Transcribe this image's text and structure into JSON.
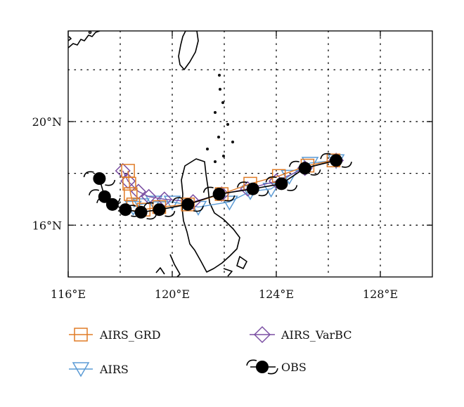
{
  "map": {
    "x_axis": {
      "range": [
        116,
        130
      ],
      "ticks": [
        {
          "value": 116,
          "label": "116°E"
        },
        {
          "value": 120,
          "label": "120°E"
        },
        {
          "value": 124,
          "label": "124°E"
        },
        {
          "value": 128,
          "label": "128°E"
        }
      ],
      "gridlines": [
        118,
        122,
        126
      ]
    },
    "y_axis": {
      "range": [
        14.0,
        23.5
      ],
      "ticks": [
        {
          "value": 20,
          "label": "20°N"
        },
        {
          "value": 16,
          "label": "16°N"
        }
      ],
      "gridlines": [
        22,
        18
      ]
    },
    "grid": "dotted"
  },
  "colors": {
    "AIRS_GRD": "#e07b26",
    "AIRS": "#5b9bd5",
    "AIRS_VarBC": "#7b4fa3",
    "OBS": "#000000"
  },
  "chart_data": {
    "type": "scatter",
    "xlabel": "",
    "ylabel": "",
    "series": [
      {
        "name": "AIRS_GRD",
        "marker": "square",
        "points": [
          [
            126.2,
            18.5
          ],
          [
            125.2,
            18.3
          ],
          [
            124.1,
            17.9
          ],
          [
            123.0,
            17.6
          ],
          [
            121.9,
            17.2
          ],
          [
            120.6,
            16.8
          ],
          [
            119.5,
            16.7
          ],
          [
            118.9,
            16.6
          ],
          [
            118.5,
            16.8
          ],
          [
            118.4,
            17.2
          ],
          [
            118.35,
            17.6
          ],
          [
            118.3,
            18.1
          ]
        ]
      },
      {
        "name": "AIRS",
        "marker": "triangle-down",
        "points": [
          [
            126.3,
            18.5
          ],
          [
            125.3,
            18.4
          ],
          [
            124.5,
            17.9
          ],
          [
            123.8,
            17.4
          ],
          [
            123.0,
            17.3
          ],
          [
            122.2,
            16.9
          ],
          [
            121.0,
            16.7
          ],
          [
            120.0,
            16.9
          ],
          [
            119.3,
            16.9
          ],
          [
            118.8,
            16.8
          ],
          [
            118.5,
            16.7
          ]
        ]
      },
      {
        "name": "AIRS_VarBC",
        "marker": "diamond",
        "points": [
          [
            126.3,
            18.5
          ],
          [
            125.1,
            18.2
          ],
          [
            124.0,
            17.7
          ],
          [
            122.9,
            17.4
          ],
          [
            121.9,
            17.2
          ],
          [
            120.8,
            16.9
          ],
          [
            119.7,
            17.0
          ],
          [
            119.1,
            17.1
          ],
          [
            118.7,
            17.3
          ],
          [
            118.3,
            17.7
          ],
          [
            118.1,
            18.1
          ]
        ]
      },
      {
        "name": "OBS",
        "marker": "typhoon",
        "points": [
          [
            126.3,
            18.5
          ],
          [
            125.1,
            18.2
          ],
          [
            124.2,
            17.6
          ],
          [
            123.1,
            17.4
          ],
          [
            121.8,
            17.2
          ],
          [
            120.6,
            16.8
          ],
          [
            119.5,
            16.6
          ],
          [
            118.8,
            16.5
          ],
          [
            118.2,
            16.6
          ],
          [
            117.7,
            16.8
          ],
          [
            117.4,
            17.1
          ],
          [
            117.2,
            17.8
          ]
        ]
      }
    ]
  },
  "legend": [
    {
      "label": "AIRS_GRD",
      "marker": "square",
      "color": "#e07b26"
    },
    {
      "label": "AIRS_VarBC",
      "marker": "diamond",
      "color": "#7b4fa3"
    },
    {
      "label": "AIRS",
      "marker": "triangle-down",
      "color": "#5b9bd5"
    },
    {
      "label": "OBS",
      "marker": "typhoon",
      "color": "#000000"
    }
  ]
}
